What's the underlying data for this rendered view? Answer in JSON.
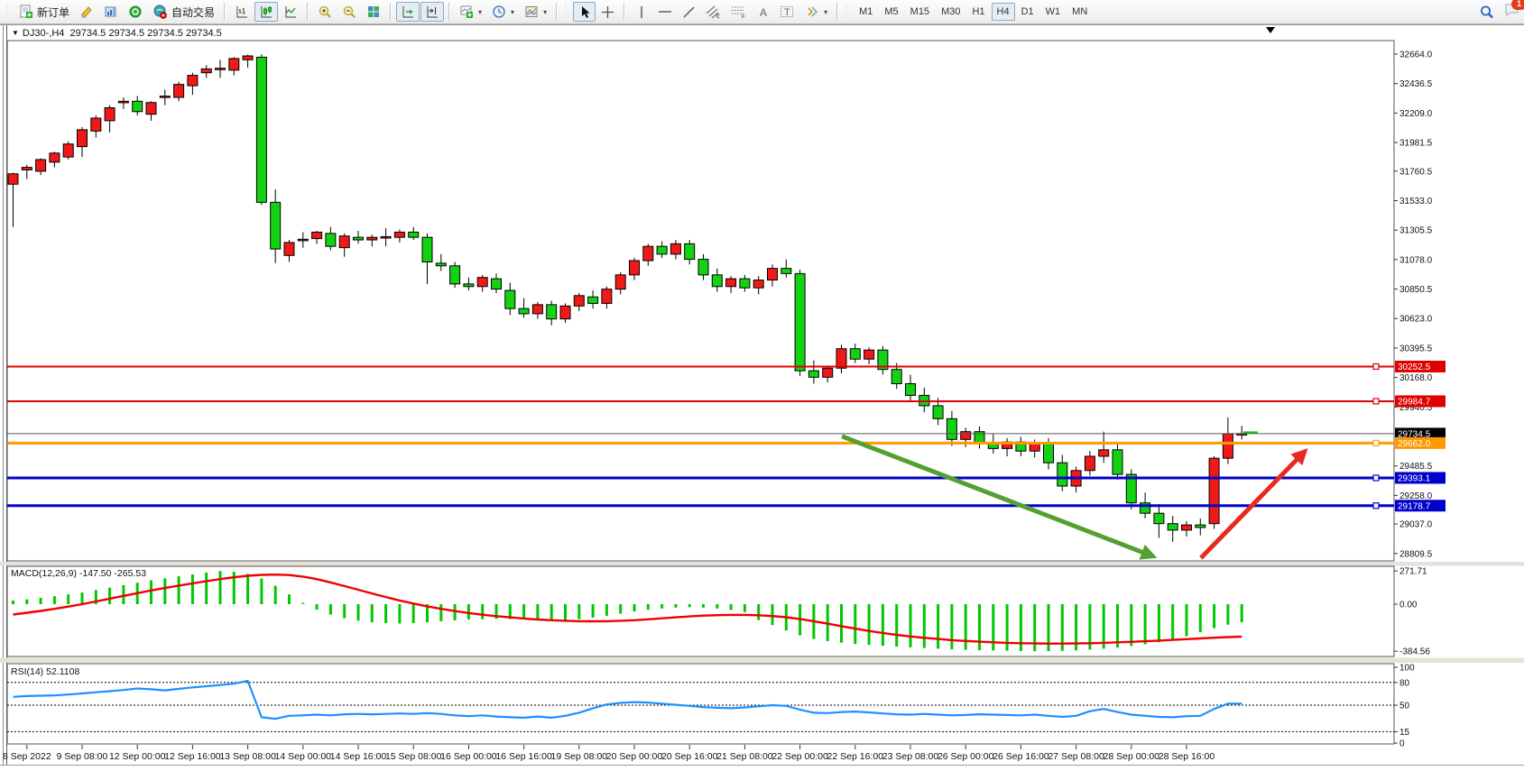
{
  "toolbar": {
    "new_order_label": "新订单",
    "auto_trading_label": "自动交易",
    "timeframes": [
      "M1",
      "M5",
      "M15",
      "M30",
      "H1",
      "H4",
      "D1",
      "W1",
      "MN"
    ],
    "active_timeframe": "H4",
    "notification_count": "1",
    "icons": [
      "new-order-doc-plus",
      "profiles-yellow",
      "market-watch-blue",
      "navigator-green",
      "auto-trading-teal",
      "bar-chart",
      "candlestick-chart",
      "line-chart",
      "zoom-in-magnifier",
      "zoom-out-magnifier",
      "tile-windows",
      "auto-scroll",
      "chart-shift",
      "add-indicator-plus",
      "periods-clock",
      "templates-chart",
      "cursor-arrow",
      "crosshair",
      "vertical-line",
      "horizontal-line",
      "trend-line",
      "equidistant-channel",
      "fibonacci",
      "text-a",
      "text-label-t",
      "arrow-shapes",
      "search-magnifier",
      "chat-bubble"
    ]
  },
  "chart": {
    "title_symbol": "DJ30-,H4",
    "title_quotes": "29734.5 29734.5 29734.5 29734.5",
    "price_ticks": [
      "32664.0",
      "32436.5",
      "32209.0",
      "31981.5",
      "31760.5",
      "31533.0",
      "31305.5",
      "31078.0",
      "30850.5",
      "30623.0",
      "30395.5",
      "30168.0",
      "29940.5",
      "29485.5",
      "29258.0",
      "29037.0",
      "28809.5"
    ],
    "hlines": [
      {
        "label": "30252.5",
        "price": 30252.5,
        "color": "#e00000",
        "width": 2
      },
      {
        "label": "29984.7",
        "price": 29984.7,
        "color": "#e00000",
        "width": 2
      },
      {
        "label": "29662.0",
        "price": 29662.0,
        "color": "#ff9900",
        "width": 3
      },
      {
        "label": "29393.1",
        "price": 29393.1,
        "color": "#0000cc",
        "width": 3
      },
      {
        "label": "29178.7",
        "price": 29178.7,
        "color": "#0000cc",
        "width": 3
      }
    ],
    "current_price": {
      "label": "29734.5",
      "price": 29734.5,
      "badge_color": "#000000"
    },
    "time_labels": [
      "8 Sep 2022",
      "9 Sep 08:00",
      "12 Sep 00:00",
      "12 Sep 16:00",
      "13 Sep 08:00",
      "14 Sep 00:00",
      "14 Sep 16:00",
      "15 Sep 08:00",
      "16 Sep 00:00",
      "16 Sep 16:00",
      "19 Sep 08:00",
      "20 Sep 00:00",
      "20 Sep 16:00",
      "21 Sep 08:00",
      "22 Sep 00:00",
      "22 Sep 16:00",
      "23 Sep 08:00",
      "26 Sep 00:00",
      "26 Sep 16:00",
      "27 Sep 08:00",
      "28 Sep 00:00",
      "28 Sep 16:00"
    ],
    "up_color": "#ef1a17",
    "down_color": "#12d212",
    "candles": [
      [
        31660,
        31750,
        31330,
        31740
      ],
      [
        31770,
        31810,
        31700,
        31790
      ],
      [
        31760,
        31860,
        31730,
        31850
      ],
      [
        31830,
        31910,
        31790,
        31900
      ],
      [
        31870,
        31990,
        31850,
        31970
      ],
      [
        31950,
        32100,
        31870,
        32080
      ],
      [
        32070,
        32190,
        32020,
        32170
      ],
      [
        32150,
        32270,
        32060,
        32250
      ],
      [
        32290,
        32330,
        32240,
        32300
      ],
      [
        32300,
        32340,
        32190,
        32220
      ],
      [
        32200,
        32300,
        32150,
        32290
      ],
      [
        32330,
        32390,
        32270,
        32340
      ],
      [
        32330,
        32450,
        32300,
        32430
      ],
      [
        32420,
        32520,
        32350,
        32500
      ],
      [
        32520,
        32580,
        32480,
        32550
      ],
      [
        32550,
        32620,
        32480,
        32555
      ],
      [
        32540,
        32640,
        32500,
        32630
      ],
      [
        32620,
        32660,
        32560,
        32650
      ],
      [
        32640,
        32662,
        31500,
        31520
      ],
      [
        31520,
        31620,
        31050,
        31160
      ],
      [
        31110,
        31230,
        31060,
        31210
      ],
      [
        31230,
        31290,
        31170,
        31235
      ],
      [
        31240,
        31300,
        31200,
        31290
      ],
      [
        31280,
        31330,
        31150,
        31180
      ],
      [
        31170,
        31280,
        31100,
        31260
      ],
      [
        31250,
        31300,
        31200,
        31230
      ],
      [
        31230,
        31270,
        31180,
        31250
      ],
      [
        31250,
        31320,
        31180,
        31255
      ],
      [
        31250,
        31310,
        31210,
        31290
      ],
      [
        31290,
        31330,
        31230,
        31250
      ],
      [
        31250,
        31280,
        30890,
        31060
      ],
      [
        31050,
        31120,
        30990,
        31030
      ],
      [
        31030,
        31060,
        30860,
        30890
      ],
      [
        30890,
        30940,
        30840,
        30870
      ],
      [
        30870,
        30960,
        30830,
        30940
      ],
      [
        30930,
        30970,
        30820,
        30850
      ],
      [
        30840,
        30900,
        30650,
        30700
      ],
      [
        30700,
        30780,
        30630,
        30660
      ],
      [
        30660,
        30750,
        30620,
        30730
      ],
      [
        30730,
        30760,
        30570,
        30620
      ],
      [
        30620,
        30740,
        30590,
        30720
      ],
      [
        30720,
        30820,
        30680,
        30800
      ],
      [
        30790,
        30840,
        30700,
        30740
      ],
      [
        30740,
        30870,
        30700,
        30850
      ],
      [
        30850,
        30980,
        30810,
        30960
      ],
      [
        30960,
        31090,
        30920,
        31070
      ],
      [
        31070,
        31200,
        31030,
        31180
      ],
      [
        31180,
        31220,
        31090,
        31120
      ],
      [
        31120,
        31230,
        31080,
        31200
      ],
      [
        31200,
        31230,
        31040,
        31080
      ],
      [
        31080,
        31120,
        30920,
        30960
      ],
      [
        30960,
        31010,
        30830,
        30870
      ],
      [
        30870,
        30950,
        30820,
        30930
      ],
      [
        30930,
        30960,
        30830,
        30860
      ],
      [
        30860,
        30950,
        30810,
        30920
      ],
      [
        30920,
        31040,
        30870,
        31010
      ],
      [
        31010,
        31080,
        30940,
        30970
      ],
      [
        30970,
        31000,
        30180,
        30220
      ],
      [
        30220,
        30300,
        30120,
        30170
      ],
      [
        30170,
        30260,
        30130,
        30240
      ],
      [
        30240,
        30420,
        30200,
        30390
      ],
      [
        30390,
        30430,
        30280,
        30310
      ],
      [
        30310,
        30400,
        30270,
        30380
      ],
      [
        30380,
        30410,
        30190,
        30230
      ],
      [
        30230,
        30280,
        30080,
        30120
      ],
      [
        30120,
        30190,
        29990,
        30030
      ],
      [
        30030,
        30090,
        29900,
        29950
      ],
      [
        29950,
        30010,
        29800,
        29850
      ],
      [
        29850,
        29910,
        29640,
        29690
      ],
      [
        29690,
        29780,
        29630,
        29750
      ],
      [
        29750,
        29790,
        29620,
        29660
      ],
      [
        29660,
        29730,
        29580,
        29620
      ],
      [
        29620,
        29700,
        29560,
        29670
      ],
      [
        29670,
        29710,
        29560,
        29600
      ],
      [
        29600,
        29690,
        29550,
        29660
      ],
      [
        29660,
        29700,
        29460,
        29510
      ],
      [
        29510,
        29570,
        29290,
        29330
      ],
      [
        29330,
        29480,
        29280,
        29450
      ],
      [
        29450,
        29600,
        29410,
        29560
      ],
      [
        29560,
        29750,
        29510,
        29610
      ],
      [
        29610,
        29660,
        29380,
        29420
      ],
      [
        29420,
        29460,
        29150,
        29200
      ],
      [
        29200,
        29280,
        29080,
        29120
      ],
      [
        29120,
        29190,
        28930,
        29040
      ],
      [
        29040,
        29100,
        28900,
        28990
      ],
      [
        28990,
        29060,
        28940,
        29030
      ],
      [
        29030,
        29080,
        28950,
        29010
      ],
      [
        29040,
        29560,
        29000,
        29545
      ],
      [
        29545,
        29860,
        29500,
        29734
      ],
      [
        29734,
        29795,
        29690,
        29735
      ]
    ],
    "arrows": [
      {
        "name": "down-move-arrow",
        "color": "#53a033",
        "from": {
          "bar": 60.4,
          "price": 29714
        },
        "to": {
          "bar": 82.9,
          "price": 28789
        }
      },
      {
        "name": "up-move-arrow",
        "color": "#e8291f",
        "from": {
          "bar": 86.4,
          "price": 28775
        },
        "to": {
          "bar": 93.9,
          "price": 29595
        }
      }
    ]
  },
  "macd": {
    "label": "MACD(12,26,9)",
    "value_main": "-147.50",
    "value_signal": "-265.53",
    "axis": [
      "271.71",
      "0.00",
      "-384.56"
    ],
    "histogram_color": "#00c800",
    "signal_color": "#f00000",
    "histogram": [
      30,
      40,
      52,
      65,
      80,
      95,
      115,
      135,
      155,
      175,
      195,
      212,
      228,
      243,
      258,
      271.71,
      265,
      248,
      210,
      150,
      80,
      10,
      -45,
      -85,
      -115,
      -135,
      -148,
      -155,
      -158,
      -155,
      -148,
      -140,
      -132,
      -126,
      -122,
      -120,
      -122,
      -126,
      -130,
      -133,
      -130,
      -122,
      -110,
      -95,
      -78,
      -60,
      -45,
      -35,
      -28,
      -25,
      -28,
      -35,
      -48,
      -65,
      -130,
      -170,
      -215,
      -255,
      -285,
      -302,
      -315,
      -325,
      -333,
      -340,
      -347,
      -353,
      -359,
      -364,
      -369,
      -373,
      -376,
      -379,
      -381,
      -383,
      -384.56,
      -384,
      -382,
      -378,
      -372,
      -364,
      -354,
      -342,
      -328,
      -312,
      -290,
      -262,
      -230,
      -196,
      -168,
      -147.5
    ],
    "signal": [
      -85,
      -70,
      -55,
      -38,
      -20,
      0,
      22,
      45,
      68,
      90,
      112,
      132,
      152,
      170,
      188,
      205,
      220,
      232,
      240,
      242,
      238,
      226,
      205,
      178,
      148,
      118,
      88,
      58,
      30,
      5,
      -18,
      -38,
      -56,
      -72,
      -86,
      -98,
      -108,
      -117,
      -125,
      -131,
      -136,
      -139,
      -140,
      -139,
      -136,
      -131,
      -124,
      -116,
      -108,
      -100,
      -94,
      -90,
      -88,
      -88,
      -91,
      -97,
      -107,
      -121,
      -139,
      -159,
      -180,
      -200,
      -219,
      -236,
      -251,
      -264,
      -275,
      -285,
      -294,
      -301,
      -307,
      -312,
      -316,
      -319,
      -321,
      -322,
      -322,
      -321,
      -319,
      -316,
      -312,
      -308,
      -303,
      -298,
      -292,
      -286,
      -280,
      -274,
      -269,
      -265.53
    ]
  },
  "rsi": {
    "label": "RSI(14)",
    "value": "52.1108",
    "axis": [
      "100",
      "80",
      "50",
      "15",
      "0"
    ],
    "levels": [
      80,
      50,
      15
    ],
    "line_color": "#1e90ff",
    "values": [
      61,
      62,
      62.5,
      63,
      64,
      65.5,
      67,
      68.5,
      70,
      72,
      71,
      69.5,
      71.5,
      73.5,
      75,
      76.5,
      78.5,
      82,
      34,
      32,
      36,
      36.5,
      37.5,
      36.5,
      38,
      38.5,
      38,
      38.5,
      39,
      38.5,
      39.5,
      38.5,
      36.5,
      35.5,
      36.5,
      35,
      34,
      33.5,
      35,
      33.5,
      36,
      40,
      46,
      51,
      53,
      54,
      53.5,
      52,
      50.5,
      49,
      47.5,
      46.5,
      46,
      47,
      48.5,
      50,
      49,
      44,
      40,
      39.5,
      41,
      41.5,
      40.5,
      39,
      38,
      37.5,
      38.5,
      37.5,
      36.5,
      37,
      38,
      37.5,
      37,
      36.5,
      37.5,
      36,
      34.5,
      36,
      42,
      45,
      41,
      37.5,
      36,
      34.5,
      34,
      35.5,
      36,
      45,
      52,
      52.11
    ]
  }
}
